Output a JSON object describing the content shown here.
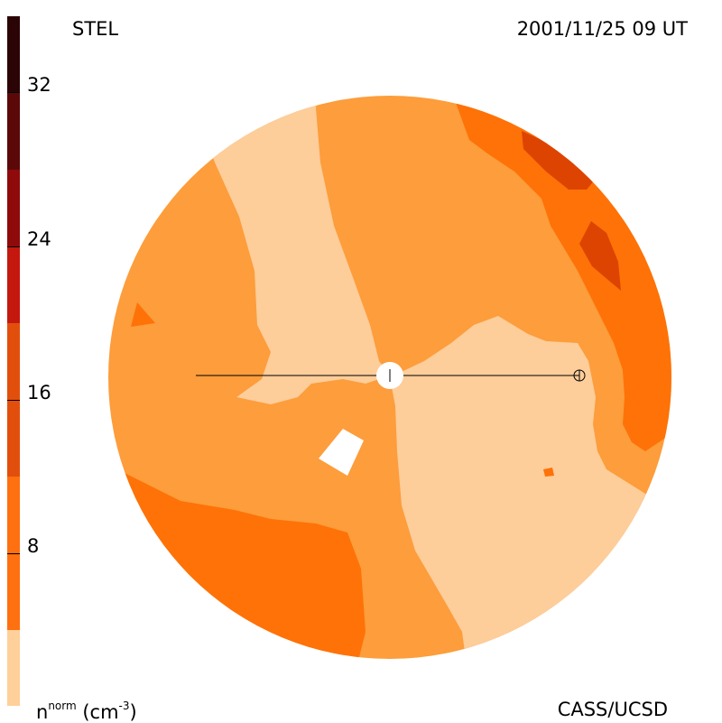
{
  "header": {
    "source": "STEL",
    "date": "2001/11/25 09 UT"
  },
  "footer": {
    "unit_base": "n",
    "unit_sup": "norm",
    "unit_rest": " (cm",
    "unit_exp": "-3",
    "unit_close": ")",
    "credit": "CASS/UCSD"
  },
  "colorbar": {
    "ticks": [
      "32",
      "24",
      "16",
      "8"
    ],
    "colors": [
      "#2b0505",
      "#5c0808",
      "#8f0a0a",
      "#c4180f",
      "#e24f0c",
      "#ff7010",
      "#ffa040",
      "#ffd09a"
    ]
  },
  "map_colors": {
    "level1": "#fdcd9a",
    "level2": "#fd9d3b",
    "level3": "#fe7207",
    "level4": "#dd4402",
    "blank": "#ffffff",
    "line": "#000000"
  }
}
